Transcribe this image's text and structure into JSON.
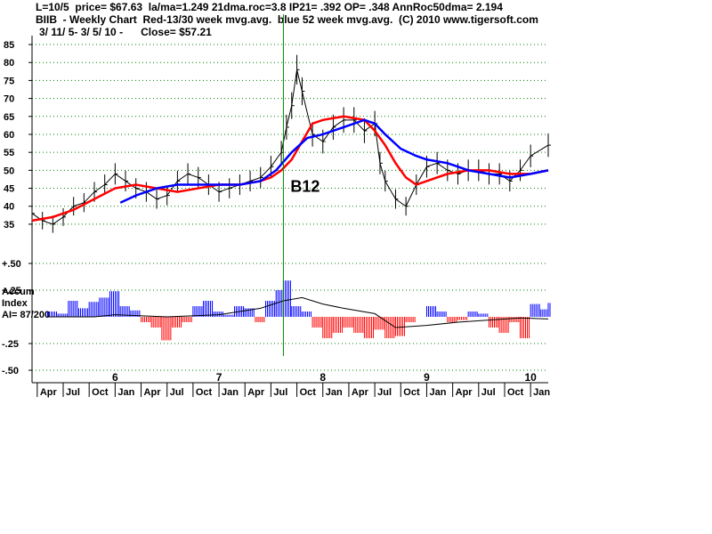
{
  "header": {
    "line1": "L=10/5  price= $67.63  la/ma=1.249 21dma.roc=3.8 IP21= .392 OP= .348 AnnRoc50dma= 2.194",
    "line2": "BIIB  - Weekly Chart  Red-13/30 week mvg.avg.  blue 52 week mvg.avg.  (C) 2010 www.tigersoft.com",
    "line3": "3/ 11/ 5- 3/ 5/ 10 -      Close= $57.21"
  },
  "chart_data": [
    {
      "type": "line",
      "name": "price",
      "ylim": [
        33,
        86
      ],
      "yticks": [
        35,
        40,
        45,
        50,
        55,
        60,
        65,
        70,
        75,
        80,
        85
      ],
      "grid": "dotted horizontal",
      "x_range": [
        2005.2,
        2010.17
      ],
      "x_year_labels": [
        {
          "x": 2006.0,
          "label": "6"
        },
        {
          "x": 2007.0,
          "label": "7"
        },
        {
          "x": 2008.0,
          "label": "8"
        },
        {
          "x": 2009.0,
          "label": "9"
        },
        {
          "x": 2010.0,
          "label": "10"
        }
      ],
      "x_month_labels": [
        {
          "x": 2005.25,
          "label": "Apr"
        },
        {
          "x": 2005.5,
          "label": "Jul"
        },
        {
          "x": 2005.75,
          "label": "Oct"
        },
        {
          "x": 2006.0,
          "label": "Jan"
        },
        {
          "x": 2006.25,
          "label": "Apr"
        },
        {
          "x": 2006.5,
          "label": "Jul"
        },
        {
          "x": 2006.75,
          "label": "Oct"
        },
        {
          "x": 2007.0,
          "label": "Jan"
        },
        {
          "x": 2007.25,
          "label": "Apr"
        },
        {
          "x": 2007.5,
          "label": "Jul"
        },
        {
          "x": 2007.75,
          "label": "Oct"
        },
        {
          "x": 2008.0,
          "label": "Jan"
        },
        {
          "x": 2008.25,
          "label": "Apr"
        },
        {
          "x": 2008.5,
          "label": "Jul"
        },
        {
          "x": 2008.75,
          "label": "Oct"
        },
        {
          "x": 2009.0,
          "label": "Jan"
        },
        {
          "x": 2009.25,
          "label": "Apr"
        },
        {
          "x": 2009.5,
          "label": "Jul"
        },
        {
          "x": 2009.75,
          "label": "Oct"
        },
        {
          "x": 2010.0,
          "label": "Jan"
        }
      ],
      "series": [
        {
          "color": "#000000",
          "x": [
            2005.2,
            2005.3,
            2005.4,
            2005.5,
            2005.6,
            2005.7,
            2005.8,
            2005.9,
            2006.0,
            2006.1,
            2006.2,
            2006.3,
            2006.4,
            2006.5,
            2006.6,
            2006.7,
            2006.8,
            2006.9,
            2007.0,
            2007.1,
            2007.2,
            2007.3,
            2007.4,
            2007.5,
            2007.6,
            2007.65,
            2007.7,
            2007.75,
            2007.8,
            2007.9,
            2008.0,
            2008.1,
            2008.2,
            2008.3,
            2008.4,
            2008.5,
            2008.55,
            2008.6,
            2008.7,
            2008.8,
            2008.9,
            2009.0,
            2009.1,
            2009.2,
            2009.3,
            2009.4,
            2009.5,
            2009.6,
            2009.7,
            2009.8,
            2009.9,
            2010.0,
            2010.17
          ],
          "values": [
            38,
            36,
            35,
            37,
            40,
            41,
            44,
            46,
            49,
            47,
            45,
            44,
            42,
            43,
            47,
            49,
            48,
            46,
            44,
            45,
            46,
            47,
            48,
            51,
            55,
            62,
            68,
            78,
            72,
            60,
            58,
            62,
            64,
            64,
            61,
            63,
            52,
            47,
            42,
            40,
            46,
            51,
            52,
            50,
            49,
            50,
            50,
            49,
            49,
            47,
            50,
            54,
            57
          ]
        },
        {
          "name": "Red-13/30 week mvg.avg.",
          "color": "#ff0000",
          "x": [
            2005.2,
            2005.4,
            2005.6,
            2005.8,
            2006.0,
            2006.2,
            2006.4,
            2006.6,
            2006.8,
            2007.0,
            2007.2,
            2007.4,
            2007.5,
            2007.6,
            2007.7,
            2007.8,
            2007.9,
            2008.0,
            2008.2,
            2008.4,
            2008.5,
            2008.6,
            2008.7,
            2008.8,
            2008.9,
            2009.0,
            2009.2,
            2009.4,
            2009.6,
            2009.8,
            2010.0,
            2010.17
          ],
          "values": [
            36,
            37,
            39,
            42,
            45,
            46,
            45,
            44,
            45,
            46,
            46,
            47,
            48,
            50,
            53,
            58,
            63,
            64,
            65,
            64,
            61,
            57,
            52,
            48,
            46,
            47,
            49,
            50,
            50,
            49,
            49,
            50
          ]
        },
        {
          "name": "blue 52 week mvg.avg.",
          "color": "#0000ff",
          "x": [
            2006.05,
            2006.2,
            2006.4,
            2006.6,
            2006.8,
            2007.0,
            2007.2,
            2007.4,
            2007.55,
            2007.7,
            2007.85,
            2008.0,
            2008.2,
            2008.4,
            2008.5,
            2008.6,
            2008.75,
            2008.9,
            2009.0,
            2009.2,
            2009.4,
            2009.6,
            2009.8,
            2010.0,
            2010.17
          ],
          "values": [
            41,
            43,
            45,
            46,
            46,
            46,
            46,
            47,
            50,
            55,
            59,
            60,
            62,
            64,
            63,
            60,
            56,
            54,
            53,
            52,
            50,
            49,
            48,
            49,
            50
          ]
        }
      ],
      "annotations": [
        {
          "x": 2007.62,
          "label": "B12",
          "vertical_line_color": "#008000"
        }
      ]
    },
    {
      "type": "area",
      "name": "Accum Index",
      "ylim": [
        -0.5,
        0.5
      ],
      "yticks": [
        {
          "value": 0.5,
          "label": "+.50"
        },
        {
          "value": 0.25,
          "label": "+.25"
        },
        {
          "value": -0.25,
          "label": "-.25"
        },
        {
          "value": -0.5,
          "label": "-.50"
        }
      ],
      "side_label": [
        "Accum",
        "Index",
        "AI= 87/200"
      ],
      "positive_color": "#0000ff",
      "negative_color": "#ff0000",
      "x": [
        2005.35,
        2005.45,
        2005.55,
        2005.65,
        2005.75,
        2005.85,
        2005.95,
        2006.05,
        2006.15,
        2006.25,
        2006.35,
        2006.45,
        2006.55,
        2006.65,
        2006.75,
        2006.85,
        2006.95,
        2007.05,
        2007.15,
        2007.25,
        2007.35,
        2007.45,
        2007.55,
        2007.62,
        2007.7,
        2007.8,
        2007.9,
        2008.0,
        2008.1,
        2008.2,
        2008.3,
        2008.4,
        2008.5,
        2008.6,
        2008.7,
        2008.8,
        2008.9,
        2009.0,
        2009.1,
        2009.2,
        2009.3,
        2009.4,
        2009.5,
        2009.6,
        2009.7,
        2009.8,
        2009.9,
        2010.0,
        2010.1,
        2010.17
      ],
      "values": [
        0.05,
        0.03,
        0.15,
        0.08,
        0.14,
        0.18,
        0.24,
        0.1,
        0.06,
        -0.05,
        -0.1,
        -0.22,
        -0.1,
        -0.05,
        0.1,
        0.15,
        0.05,
        0.02,
        0.1,
        0.08,
        -0.05,
        0.15,
        0.25,
        0.34,
        0.1,
        0.05,
        -0.1,
        -0.2,
        -0.15,
        -0.1,
        -0.15,
        -0.2,
        -0.12,
        -0.2,
        -0.18,
        -0.05,
        0.0,
        0.1,
        0.05,
        -0.05,
        -0.03,
        0.05,
        0.03,
        -0.1,
        -0.15,
        -0.05,
        -0.2,
        0.12,
        0.07,
        0.13
      ],
      "line": {
        "color": "#000000",
        "x": [
          2005.35,
          2005.8,
          2006.0,
          2006.5,
          2007.0,
          2007.4,
          2007.62,
          2007.8,
          2008.0,
          2008.2,
          2008.5,
          2008.7,
          2009.0,
          2009.3,
          2009.6,
          2009.9,
          2010.17
        ],
        "values": [
          0.0,
          0.0,
          0.02,
          0.0,
          0.02,
          0.08,
          0.15,
          0.18,
          0.12,
          0.08,
          0.03,
          -0.1,
          -0.08,
          -0.05,
          -0.03,
          -0.01,
          -0.02
        ]
      }
    }
  ]
}
